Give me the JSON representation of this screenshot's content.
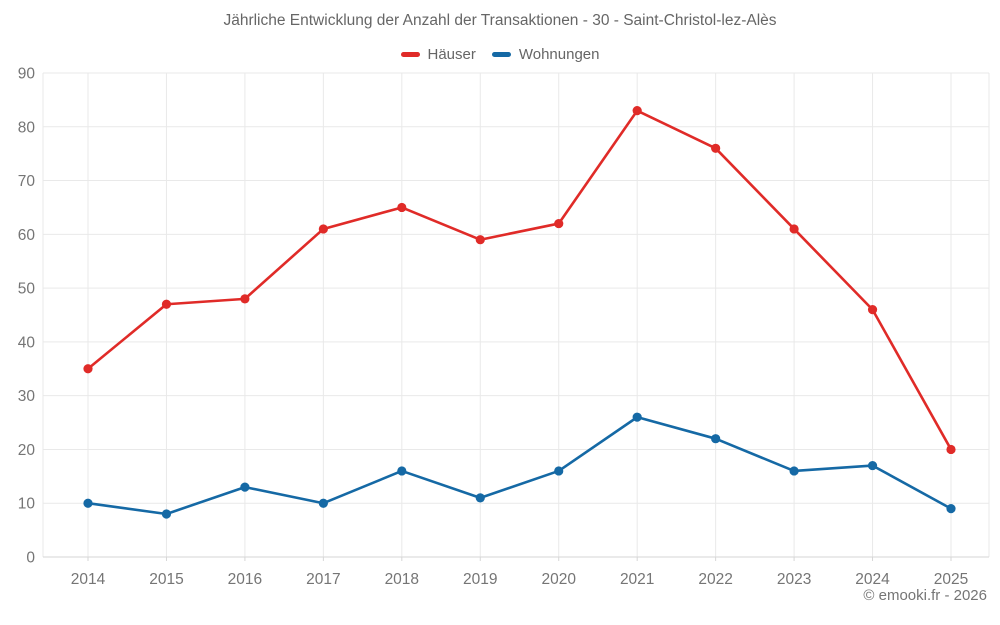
{
  "title": {
    "text": "Jährliche Entwicklung der Anzahl der Transaktionen - 30 - Saint-Christol-lez-Alès"
  },
  "footer": {
    "text": "© emooki.fr - 2026"
  },
  "colors": {
    "hauser": "#e02b28",
    "wohnungen": "#1569a5",
    "grid": "#e9e9e9",
    "axis": "#d6d6d6",
    "tick_label": "#757575",
    "title_text": "#666666"
  },
  "chart_data": {
    "type": "line",
    "title": "Jährliche Entwicklung der Anzahl der Transaktionen - 30 - Saint-Christol-lez-Alès",
    "categories": [
      "2014",
      "2015",
      "2016",
      "2017",
      "2018",
      "2019",
      "2020",
      "2021",
      "2022",
      "2023",
      "2024",
      "2025"
    ],
    "series": [
      {
        "name": "Häuser",
        "color": "#e02b28",
        "values": [
          35,
          47,
          48,
          61,
          65,
          59,
          62,
          83,
          76,
          61,
          46,
          20
        ]
      },
      {
        "name": "Wohnungen",
        "color": "#1569a5",
        "values": [
          10,
          8,
          13,
          10,
          16,
          11,
          16,
          26,
          22,
          16,
          17,
          9
        ]
      }
    ],
    "xlabel": "",
    "ylabel": "",
    "ylim": [
      0,
      90
    ],
    "ytick_step": 10,
    "grid": true,
    "legend_position": "top",
    "marker": "circle"
  }
}
